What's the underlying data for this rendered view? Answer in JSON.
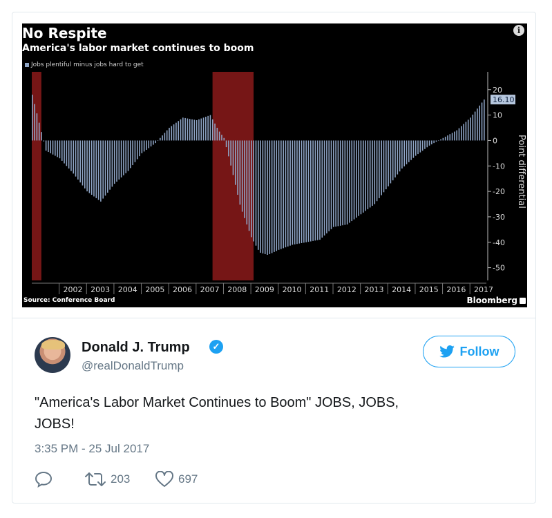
{
  "chart": {
    "title": "No Respite",
    "subtitle": "America's labor market continues to boom",
    "legend": "Jobs plentiful minus jobs hard to get",
    "source": "Source: Conference Board",
    "brand": "Bloomberg",
    "latest_value_label": "16.10",
    "yaxis_label": "Point differential",
    "colors": {
      "bar": "#8fa5c6",
      "recession": "#8b1a1a",
      "background": "#000000"
    }
  },
  "chart_data": {
    "type": "bar",
    "title": "No Respite",
    "subtitle": "America's labor market continues to boom",
    "ylabel": "Point differential",
    "ylim": [
      -55,
      27
    ],
    "yticks": [
      20,
      10,
      0,
      -10,
      -20,
      -30,
      -40,
      -50
    ],
    "x_tick_labels": [
      "2002",
      "2003",
      "2004",
      "2005",
      "2006",
      "2007",
      "2008",
      "2009",
      "2010",
      "2011",
      "2012",
      "2013",
      "2014",
      "2015",
      "2016",
      "2017"
    ],
    "x_start": 2001.0,
    "x_end": 2017.6,
    "recessions": [
      [
        2001.0,
        2001.35
      ],
      [
        2007.6,
        2009.1
      ]
    ],
    "series": [
      {
        "name": "Jobs plentiful minus jobs hard to get",
        "x": [
          2001.0,
          2001.5,
          2002.0,
          2002.5,
          2003.0,
          2003.5,
          2004.0,
          2004.5,
          2005.0,
          2005.5,
          2006.0,
          2006.5,
          2007.0,
          2007.5,
          2007.8,
          2008.0,
          2008.3,
          2008.6,
          2009.0,
          2009.3,
          2009.6,
          2010.0,
          2010.5,
          2011.0,
          2011.5,
          2012.0,
          2012.5,
          2013.0,
          2013.5,
          2014.0,
          2014.5,
          2015.0,
          2015.5,
          2016.0,
          2016.5,
          2017.0,
          2017.5
        ],
        "values": [
          18,
          -4,
          -7,
          -13,
          -20,
          -24,
          -17,
          -12,
          -5,
          -1,
          5,
          9,
          8,
          10,
          4,
          1,
          -12,
          -26,
          -38,
          -44,
          -45,
          -43,
          -41,
          -40,
          -39,
          -34,
          -33,
          -29,
          -25,
          -18,
          -11,
          -6,
          -2,
          1,
          4,
          9,
          16.1
        ]
      }
    ]
  },
  "tweet": {
    "display_name": "Donald J. Trump",
    "handle": "@realDonaldTrump",
    "follow_label": "Follow",
    "text_line1": "\"America's Labor Market Continues to Boom\" JOBS, JOBS,",
    "text_line2": "JOBS!",
    "timestamp": "3:35 PM - 25 Jul 2017",
    "retweets": "203",
    "likes": "697",
    "accent_color": "#1da1f2"
  }
}
